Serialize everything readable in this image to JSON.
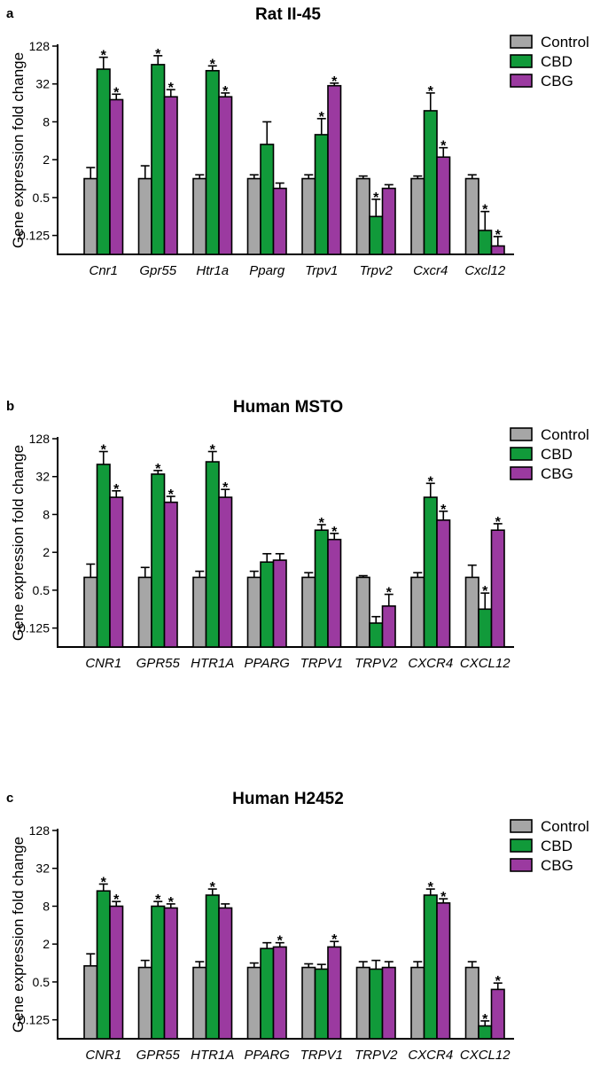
{
  "chart_data": [
    {
      "type": "bar",
      "panel": "a",
      "title": "Rat II-45",
      "ylabel": "Gene expression fold change",
      "yscale": "log2",
      "ylim": [
        0.0625,
        128
      ],
      "yticks": [
        "0.125",
        "0.5",
        "2",
        "8",
        "32",
        "128"
      ],
      "categories": [
        "Cnr1",
        "Gpr55",
        "Htr1a",
        "Pparg",
        "Trpv1",
        "Trpv2",
        "Cxcr4",
        "Cxcl12"
      ],
      "legend": [
        "Control",
        "CBD",
        "CBG"
      ],
      "series": [
        {
          "name": "Control",
          "color": "#a6a6a6",
          "values": [
            1.0,
            1.0,
            1.0,
            1.0,
            1.0,
            1.0,
            1.0,
            1.0
          ],
          "err": [
            0.5,
            0.6,
            0.15,
            0.15,
            0.15,
            0.1,
            0.1,
            0.15
          ],
          "sig": [
            false,
            false,
            false,
            false,
            false,
            false,
            false,
            false
          ]
        },
        {
          "name": "CBD",
          "color": "#119a3a",
          "values": [
            55,
            65,
            52,
            3.5,
            5.0,
            0.25,
            12,
            0.15
          ],
          "err": [
            30,
            25,
            10,
            4.5,
            4.0,
            0.22,
            11,
            0.15
          ],
          "sig": [
            true,
            true,
            true,
            false,
            true,
            true,
            true,
            true
          ]
        },
        {
          "name": "CBG",
          "color": "#9b3aa0",
          "values": [
            18,
            20,
            20,
            0.7,
            30,
            0.7,
            2.2,
            0.085
          ],
          "err": [
            4,
            6,
            3,
            0.15,
            3,
            0.1,
            0.9,
            0.035
          ],
          "sig": [
            true,
            true,
            true,
            false,
            true,
            false,
            true,
            true
          ]
        }
      ]
    },
    {
      "type": "bar",
      "panel": "b",
      "title": "Human MSTO",
      "ylabel": "Gene expression fold change",
      "yscale": "log2",
      "ylim": [
        0.0625,
        128
      ],
      "yticks": [
        "0.125",
        "0.5",
        "2",
        "8",
        "32",
        "128"
      ],
      "categories": [
        "CNR1",
        "GPR55",
        "HTR1A",
        "PPARG",
        "TRPV1",
        "TRPV2",
        "CXCR4",
        "CXCL12"
      ],
      "legend": [
        "Control",
        "CBD",
        "CBG"
      ],
      "series": [
        {
          "name": "Control",
          "color": "#a6a6a6",
          "values": [
            0.8,
            0.8,
            0.8,
            0.8,
            0.8,
            0.8,
            0.8,
            0.8
          ],
          "err": [
            0.5,
            0.35,
            0.2,
            0.2,
            0.15,
            0.05,
            0.15,
            0.45
          ],
          "sig": [
            false,
            false,
            false,
            false,
            false,
            false,
            false,
            false
          ]
        },
        {
          "name": "CBD",
          "color": "#119a3a",
          "values": [
            50,
            35,
            55,
            1.4,
            4.5,
            0.15,
            15,
            0.25
          ],
          "err": [
            30,
            5,
            25,
            0.5,
            1.0,
            0.04,
            10,
            0.2
          ],
          "sig": [
            true,
            true,
            true,
            false,
            true,
            false,
            true,
            true
          ]
        },
        {
          "name": "CBG",
          "color": "#9b3aa0",
          "values": [
            15,
            12.5,
            15,
            1.5,
            3.2,
            0.28,
            6.5,
            4.5
          ],
          "err": [
            4,
            3,
            5,
            0.4,
            0.8,
            0.15,
            2.5,
            1.2
          ],
          "sig": [
            true,
            true,
            true,
            false,
            true,
            true,
            true,
            true
          ]
        }
      ]
    },
    {
      "type": "bar",
      "panel": "c",
      "title": "Human H2452",
      "ylabel": "Gene expression fold change",
      "yscale": "log2",
      "ylim": [
        0.0625,
        128
      ],
      "yticks": [
        "0.125",
        "0.5",
        "2",
        "8",
        "32",
        "128"
      ],
      "categories": [
        "CNR1",
        "GPR55",
        "HTR1A",
        "PPARG",
        "TRPV1",
        "TRPV2",
        "CXCR4",
        "CXCL12"
      ],
      "legend": [
        "Control",
        "CBD",
        "CBG"
      ],
      "series": [
        {
          "name": "Control",
          "color": "#a6a6a6",
          "values": [
            0.9,
            0.85,
            0.85,
            0.85,
            0.85,
            0.85,
            0.85,
            0.85
          ],
          "err": [
            0.5,
            0.25,
            0.2,
            0.15,
            0.12,
            0.2,
            0.2,
            0.2
          ],
          "sig": [
            false,
            false,
            false,
            false,
            false,
            false,
            false,
            false
          ]
        },
        {
          "name": "CBD",
          "color": "#119a3a",
          "values": [
            14,
            8,
            12,
            1.7,
            0.8,
            0.8,
            12,
            0.1
          ],
          "err": [
            4,
            1.5,
            3,
            0.4,
            0.15,
            0.3,
            3,
            0.02
          ],
          "sig": [
            true,
            true,
            true,
            false,
            false,
            false,
            true,
            true
          ]
        },
        {
          "name": "CBG",
          "color": "#9b3aa0",
          "values": [
            8,
            7.5,
            7.5,
            1.8,
            1.8,
            0.85,
            9,
            0.38
          ],
          "err": [
            1.5,
            1.2,
            1.2,
            0.3,
            0.4,
            0.2,
            1.5,
            0.1
          ],
          "sig": [
            true,
            true,
            false,
            true,
            true,
            false,
            true,
            true
          ]
        }
      ]
    }
  ]
}
